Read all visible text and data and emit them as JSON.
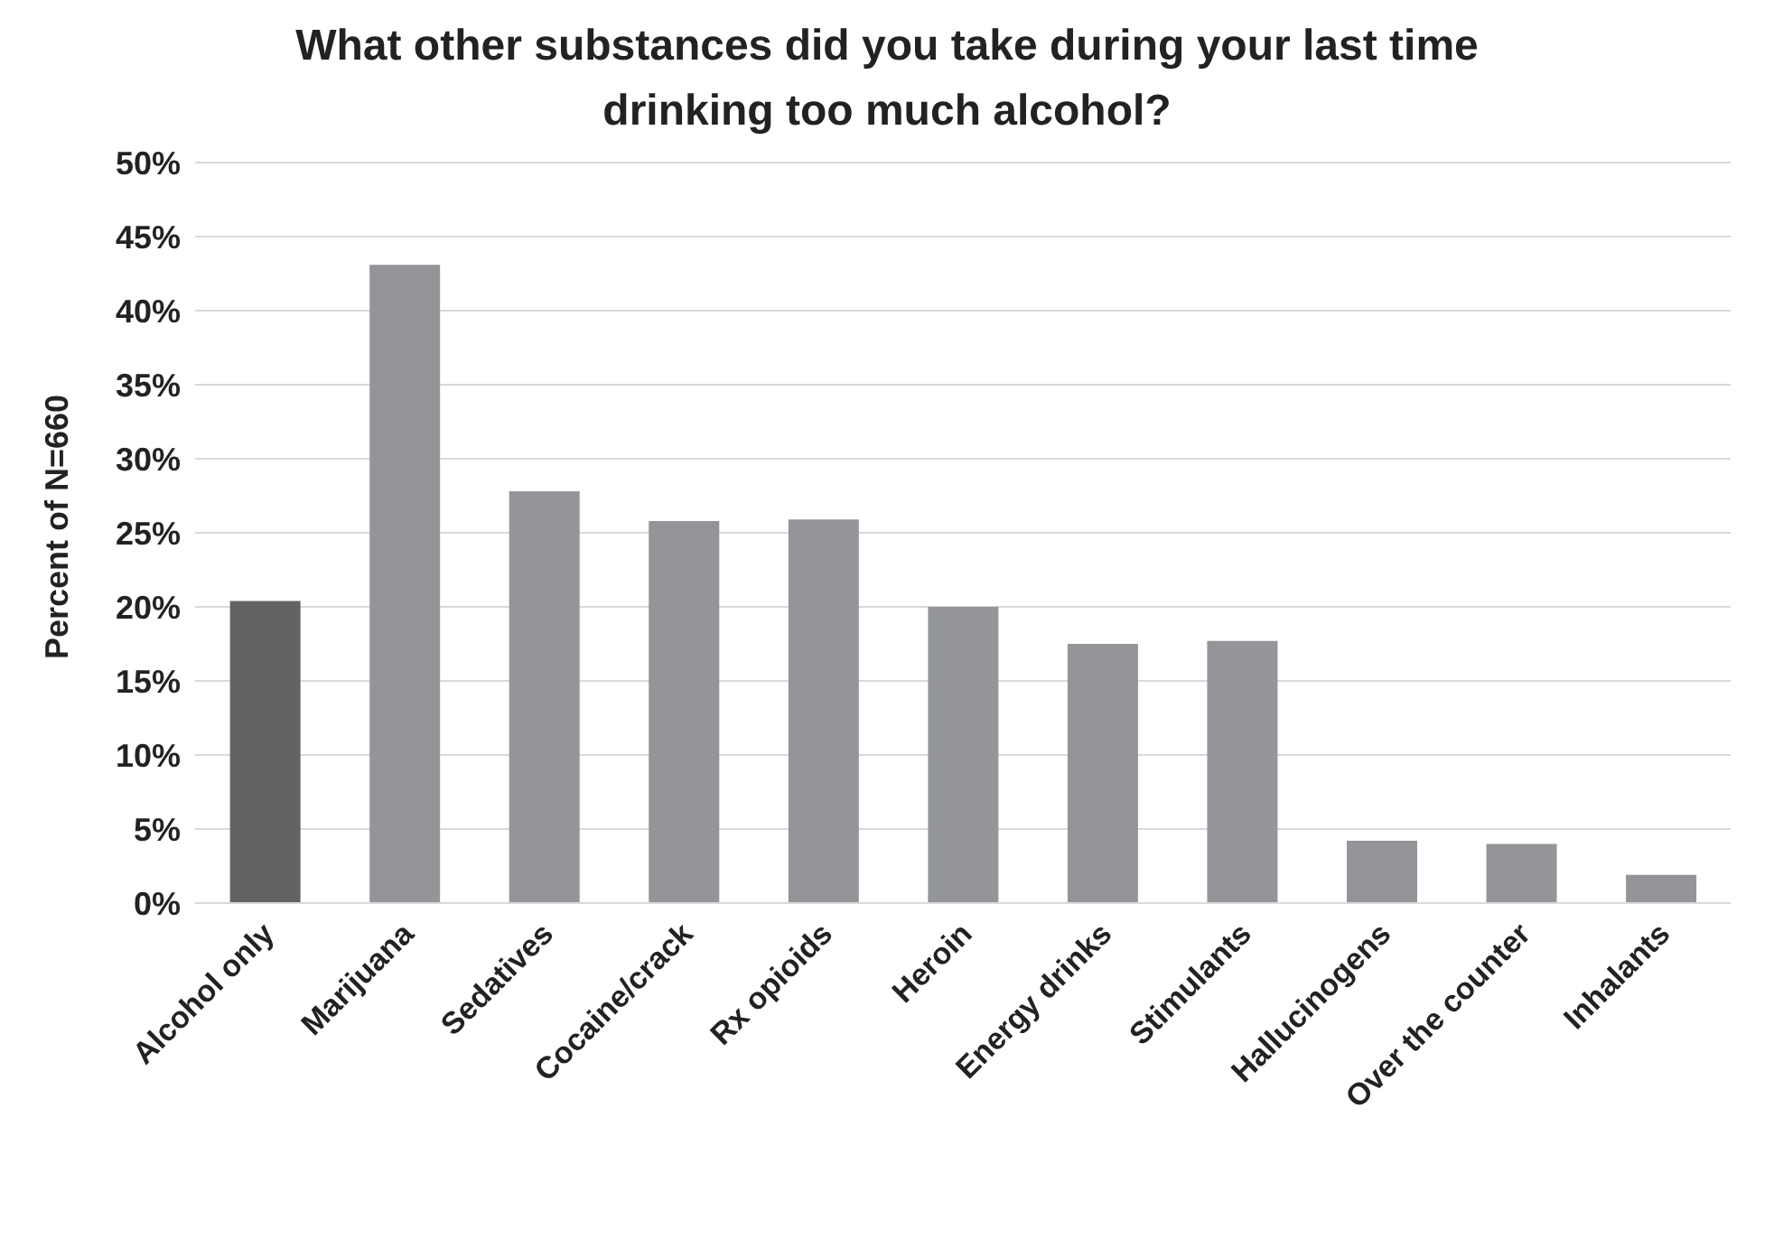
{
  "chart_data": {
    "type": "bar",
    "title": "What other substances did you take during your last time drinking too much alcohol?",
    "ylabel": "Percent of N=660",
    "categories": [
      "Alcohol only",
      "Marijuana",
      "Sedatives",
      "Cocaine/crack",
      "Rx opioids",
      "Heroin",
      "Energy drinks",
      "Stimulants",
      "Hallucinogens",
      "Over the counter",
      "Inhalants"
    ],
    "values": [
      20.4,
      43.1,
      27.8,
      25.8,
      25.9,
      20.0,
      17.5,
      17.7,
      4.2,
      4.0,
      1.9
    ],
    "colors": [
      "#636365",
      "#939598",
      "#939598",
      "#939598",
      "#939598",
      "#939598",
      "#939598",
      "#939598",
      "#939598",
      "#939598",
      "#939598"
    ],
    "ylim": [
      0,
      50
    ],
    "yticks": [
      {
        "value": 0,
        "label": "0%"
      },
      {
        "value": 5,
        "label": "5%"
      },
      {
        "value": 10,
        "label": "10%"
      },
      {
        "value": 15,
        "label": "15%"
      },
      {
        "value": 20,
        "label": "20%"
      },
      {
        "value": 25,
        "label": "25%"
      },
      {
        "value": 30,
        "label": "30%"
      },
      {
        "value": 35,
        "label": "35%"
      },
      {
        "value": 40,
        "label": "40%"
      },
      {
        "value": 45,
        "label": "45%"
      },
      {
        "value": 50,
        "label": "50%"
      }
    ],
    "grid": "y",
    "legend": false
  }
}
